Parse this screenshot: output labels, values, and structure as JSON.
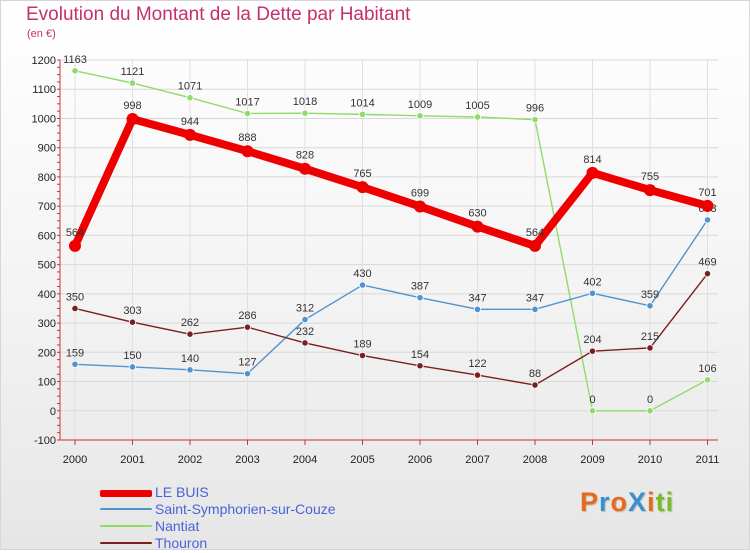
{
  "chart_data": {
    "type": "line",
    "title": "Evolution du Montant de la Dette par Habitant",
    "subtitle": "(en €)",
    "categories": [
      "2000",
      "2001",
      "2002",
      "2003",
      "2004",
      "2005",
      "2006",
      "2007",
      "2008",
      "2009",
      "2010",
      "2011"
    ],
    "ylim": [
      -100,
      1200
    ],
    "yticks": [
      -100,
      0,
      100,
      200,
      300,
      400,
      500,
      600,
      700,
      800,
      900,
      1000,
      1100,
      1200
    ],
    "grid": true,
    "legend_position": "bottom-left",
    "series": [
      {
        "name": "Nantiat",
        "color": "#8fdc6a",
        "values": [
          1163,
          1121,
          1071,
          1017,
          1018,
          1014,
          1009,
          1005,
          996,
          0,
          0,
          106
        ]
      },
      {
        "name": "Saint-Symphorien-sur-Couze",
        "color": "#4f93cf",
        "values": [
          159,
          150,
          140,
          127,
          312,
          430,
          387,
          347,
          347,
          402,
          359,
          653
        ]
      },
      {
        "name": "Thouron",
        "color": "#7a1f1f",
        "values": [
          350,
          303,
          262,
          286,
          232,
          189,
          154,
          122,
          88,
          204,
          215,
          469
        ]
      },
      {
        "name": "LE BUIS",
        "color": "#ee0000",
        "values": [
          564,
          998,
          944,
          888,
          828,
          765,
          699,
          630,
          564,
          814,
          755,
          701
        ]
      }
    ]
  },
  "legend": {
    "items": [
      {
        "label": "LE BUIS",
        "color": "#ee0000"
      },
      {
        "label": "Saint-Symphorien-sur-Couze",
        "color": "#4f93cf"
      },
      {
        "label": "Nantiat",
        "color": "#8fdc6a"
      },
      {
        "label": "Thouron",
        "color": "#7a1f1f"
      }
    ]
  },
  "logo": {
    "text": "ProXiti",
    "colors": [
      "#e8691c",
      "#3a8fd0",
      "#e8691c",
      "#3a8fd0",
      "#e8691c",
      "#78be21",
      "#78be21"
    ]
  }
}
